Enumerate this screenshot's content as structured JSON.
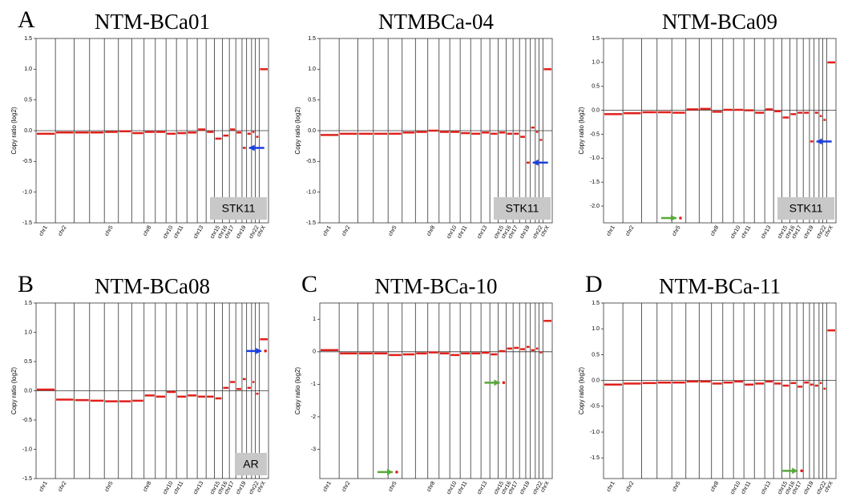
{
  "chart_data": [
    {
      "type": "copy-number",
      "panel_label": "A",
      "title": "NTM-BCa01",
      "y_label": "Copy ratio (log2)",
      "segment_color": "#e0201b",
      "categories": [
        "chr1",
        "chr2",
        null,
        null,
        "chr5",
        null,
        null,
        "chr8",
        null,
        "chr10",
        "chr11",
        null,
        "chr13",
        null,
        "chr15",
        "chr16",
        "chr17",
        null,
        "chr19",
        null,
        null,
        "chr22",
        "chrX"
      ],
      "values": [
        -0.05,
        -0.03,
        -0.03,
        -0.03,
        -0.02,
        -0.01,
        -0.04,
        -0.02,
        -0.02,
        -0.05,
        -0.04,
        -0.03,
        0.02,
        -0.02,
        -0.13,
        -0.08,
        0.02,
        -0.03,
        -0.28,
        -0.05,
        -0.02,
        -0.1,
        1.0
      ],
      "ylim": [
        -1.5,
        1.5
      ],
      "yticks": [
        {
          "value": -1.5,
          "label": "-1.5"
        },
        {
          "value": -1,
          "label": "-1.0"
        },
        -0.5,
        {
          "value": 0,
          "label": "0.0"
        },
        0.5,
        {
          "value": 1,
          "label": "1.0"
        },
        1.5
      ],
      "annotation": "STK11",
      "arrow": {
        "chromosome": "chr19",
        "color": "#1a3fe0"
      }
    },
    {
      "type": "copy-number",
      "title": "NTMBCa-04",
      "y_label": "Copy ratio (log2)",
      "segment_color": "#e0201b",
      "categories": [
        "chr1",
        "chr2",
        null,
        null,
        "chr5",
        null,
        null,
        "chr8",
        null,
        "chr10",
        "chr11",
        null,
        "chr13",
        null,
        "chr15",
        "chr16",
        "chr17",
        null,
        "chr19",
        null,
        null,
        "chr22",
        "chrX"
      ],
      "values": [
        -0.07,
        -0.05,
        -0.05,
        -0.05,
        -0.05,
        -0.03,
        -0.02,
        0,
        -0.02,
        -0.02,
        -0.04,
        -0.05,
        -0.03,
        -0.05,
        -0.03,
        -0.05,
        -0.05,
        -0.1,
        -0.52,
        0.05,
        -0.02,
        -0.15,
        1.0
      ],
      "ylim": [
        -1.5,
        1.5
      ],
      "yticks": [
        {
          "value": -1.5,
          "label": "-1.5"
        },
        {
          "value": -1,
          "label": "-1.0"
        },
        -0.5,
        {
          "value": 0,
          "label": "0.0"
        },
        0.5,
        {
          "value": 1,
          "label": "1.0"
        },
        1.5
      ],
      "annotation": "STK11",
      "arrow": {
        "chromosome": "chr19",
        "color": "#1a3fe0"
      }
    },
    {
      "type": "copy-number",
      "title": "NTM-BCa09",
      "y_label": "Copy ratio (log2)",
      "segment_color": "#e0201b",
      "categories": [
        "chr1",
        "chr2",
        null,
        null,
        "chr5",
        null,
        null,
        "chr8",
        null,
        "chr10",
        "chr11",
        null,
        "chr13",
        null,
        "chr15",
        "chr16",
        "chr17",
        null,
        "chr19",
        null,
        null,
        "chr22",
        "chrX"
      ],
      "values": [
        -0.08,
        -0.06,
        -0.04,
        -0.04,
        -0.05,
        0.02,
        0.03,
        -0.03,
        0.01,
        0.01,
        0,
        -0.05,
        0.02,
        -0.02,
        -0.15,
        -0.08,
        -0.05,
        -0.05,
        -0.65,
        -0.05,
        -0.12,
        -0.2,
        1.0
      ],
      "ylim": [
        -2.35,
        1.5
      ],
      "yticks": [
        {
          "value": -2,
          "label": "-2.0"
        },
        -1.5,
        {
          "value": -1,
          "label": "-1.0"
        },
        -0.5,
        {
          "value": 0,
          "label": "0.0"
        },
        0.5,
        {
          "value": 1,
          "label": "1.0"
        },
        1.5
      ],
      "annotation": "STK11",
      "arrow": {
        "chromosome": "chr19",
        "color": "#1a3fe0"
      },
      "highlights": [
        {
          "chromosome": "chr5",
          "value": -2.25,
          "color": "#5aa83a"
        }
      ]
    },
    {
      "type": "copy-number",
      "panel_label": "B",
      "title": "NTM-BCa08",
      "y_label": "Copy ratio (log2)",
      "segment_color": "#e0201b",
      "categories": [
        "chr1",
        "chr2",
        null,
        null,
        "chr5",
        null,
        null,
        "chr8",
        null,
        "chr10",
        "chr11",
        null,
        "chr13",
        null,
        "chr15",
        "chr16",
        "chr17",
        null,
        "chr19",
        null,
        null,
        "chr22",
        "chrX"
      ],
      "values": [
        0.02,
        -0.15,
        -0.16,
        -0.17,
        -0.18,
        -0.18,
        -0.17,
        -0.08,
        -0.1,
        -0.02,
        -0.1,
        -0.08,
        -0.1,
        -0.1,
        -0.13,
        0.05,
        0.15,
        0.03,
        0.2,
        0.05,
        0.15,
        -0.05,
        0.88
      ],
      "ylim": [
        -1.5,
        1.5
      ],
      "yticks": [
        {
          "value": -1.5,
          "label": "-1.5"
        },
        {
          "value": -1,
          "label": "-1.0"
        },
        -0.5,
        {
          "value": 0,
          "label": "0.0"
        },
        0.5,
        {
          "value": 1,
          "label": "1.0"
        },
        1.5
      ],
      "annotation": "AR",
      "highlights": [
        {
          "chromosome": "chrX",
          "value": 0.68,
          "color": "#1a3fe0"
        }
      ]
    },
    {
      "type": "copy-number",
      "panel_label": "C",
      "title": "NTM-BCa-10",
      "y_label": "Copy ratio (log2)",
      "segment_color": "#e0201b",
      "categories": [
        "chr1",
        "chr2",
        null,
        null,
        "chr5",
        null,
        null,
        "chr8",
        null,
        "chr10",
        "chr11",
        null,
        "chr13",
        null,
        "chr15",
        "chr16",
        "chr17",
        null,
        "chr19",
        null,
        null,
        "chr22",
        "chrX"
      ],
      "values": [
        0.05,
        -0.05,
        -0.05,
        -0.05,
        -0.1,
        -0.08,
        -0.05,
        -0.02,
        -0.05,
        -0.1,
        -0.05,
        -0.05,
        -0.03,
        -0.08,
        0.02,
        0.1,
        0.12,
        0.08,
        0.15,
        0.05,
        0.1,
        -0.02,
        0.95
      ],
      "ylim": [
        -3.9,
        1.5
      ],
      "yticks": [
        -3,
        -2,
        -1,
        0,
        1
      ],
      "highlights": [
        {
          "chromosome": "chr5",
          "value": -3.7,
          "color": "#5aa83a"
        },
        {
          "chromosome": "chr15",
          "value": -0.95,
          "color": "#5aa83a"
        }
      ]
    },
    {
      "type": "copy-number",
      "panel_label": "D",
      "title": "NTM-BCa-11",
      "y_label": "Copy ratio (log2)",
      "segment_color": "#e0201b",
      "categories": [
        "chr1",
        "chr2",
        null,
        null,
        "chr5",
        null,
        null,
        "chr8",
        null,
        "chr10",
        "chr11",
        null,
        "chr13",
        null,
        "chr15",
        "chr16",
        "chr17",
        null,
        "chr19",
        null,
        null,
        "chr22",
        "chrX"
      ],
      "values": [
        -0.08,
        -0.06,
        -0.05,
        -0.04,
        -0.04,
        -0.02,
        -0.02,
        -0.06,
        -0.04,
        -0.02,
        -0.08,
        -0.06,
        -0.02,
        -0.06,
        -0.1,
        -0.05,
        -0.12,
        -0.04,
        -0.08,
        -0.1,
        -0.05,
        -0.16,
        0.97
      ],
      "ylim": [
        -1.9,
        1.5
      ],
      "yticks": [
        -1.5,
        {
          "value": -1,
          "label": "-1.0"
        },
        -0.5,
        {
          "value": 0,
          "label": "0.0"
        },
        0.5,
        {
          "value": 1,
          "label": "1.0"
        },
        1.5
      ],
      "highlights": [
        {
          "chromosome": "chr17",
          "value": -1.75,
          "color": "#5aa83a"
        }
      ]
    }
  ]
}
